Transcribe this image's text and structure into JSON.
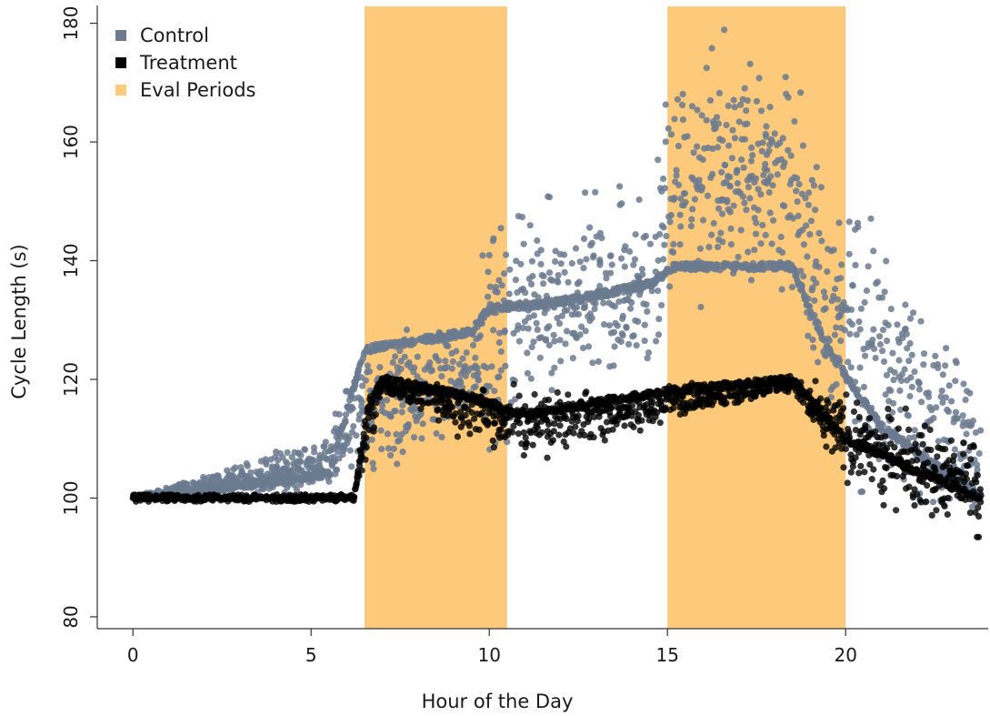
{
  "chart_data": {
    "type": "scatter",
    "title": "",
    "xlabel": "Hour of the Day",
    "ylabel": "Cycle Length (s)",
    "xlim": [
      -1,
      24
    ],
    "ylim": [
      78,
      183
    ],
    "x_ticks": [
      0,
      5,
      10,
      15,
      20
    ],
    "y_ticks": [
      80,
      100,
      120,
      140,
      160,
      180
    ],
    "grid": false,
    "legend_position": "top-left",
    "legend": [
      {
        "label": "Control",
        "color": "#6b7a8f",
        "marker": "square"
      },
      {
        "label": "Treatment",
        "color": "#000000",
        "marker": "square"
      },
      {
        "label": "Eval Periods",
        "color": "#fdc97a",
        "marker": "square"
      }
    ],
    "eval_periods": [
      [
        6.5,
        10.5
      ],
      [
        15.0,
        20.0
      ]
    ],
    "series": [
      {
        "name": "Control",
        "color": "#6b7a8f",
        "profile": [
          {
            "x": 0.0,
            "y_low": 100,
            "y_high": 100,
            "y_center": 100
          },
          {
            "x": 5.5,
            "y_low": 100,
            "y_high": 112,
            "y_center": 104
          },
          {
            "x": 6.5,
            "y_low": 100,
            "y_high": 130,
            "y_center": 125
          },
          {
            "x": 9.5,
            "y_low": 112,
            "y_high": 130,
            "y_center": 128
          },
          {
            "x": 10.0,
            "y_low": 100,
            "y_high": 157,
            "y_center": 132
          },
          {
            "x": 12.0,
            "y_low": 112,
            "y_high": 155,
            "y_center": 133
          },
          {
            "x": 14.5,
            "y_low": 115,
            "y_high": 157,
            "y_center": 136
          },
          {
            "x": 15.2,
            "y_low": 130,
            "y_high": 182,
            "y_center": 139
          },
          {
            "x": 18.5,
            "y_low": 130,
            "y_high": 178,
            "y_center": 139
          },
          {
            "x": 19.5,
            "y_low": 100,
            "y_high": 160,
            "y_center": 125
          },
          {
            "x": 21.0,
            "y_low": 91,
            "y_high": 155,
            "y_center": 112
          },
          {
            "x": 23.8,
            "y_low": 91,
            "y_high": 122,
            "y_center": 100
          }
        ]
      },
      {
        "name": "Treatment",
        "color": "#000000",
        "profile": [
          {
            "x": 0.0,
            "y_low": 100,
            "y_high": 100,
            "y_center": 100
          },
          {
            "x": 6.2,
            "y_low": 100,
            "y_high": 100,
            "y_center": 100
          },
          {
            "x": 6.6,
            "y_low": 105,
            "y_high": 120,
            "y_center": 115
          },
          {
            "x": 7.0,
            "y_low": 118,
            "y_high": 120,
            "y_center": 120
          },
          {
            "x": 9.5,
            "y_low": 108,
            "y_high": 120,
            "y_center": 117
          },
          {
            "x": 11.0,
            "y_low": 105,
            "y_high": 120,
            "y_center": 114
          },
          {
            "x": 15.0,
            "y_low": 112,
            "y_high": 120,
            "y_center": 118
          },
          {
            "x": 18.5,
            "y_low": 118,
            "y_high": 120,
            "y_center": 120
          },
          {
            "x": 20.0,
            "y_low": 100,
            "y_high": 120,
            "y_center": 110
          },
          {
            "x": 21.5,
            "y_low": 95,
            "y_high": 118,
            "y_center": 106
          },
          {
            "x": 23.8,
            "y_low": 91,
            "y_high": 112,
            "y_center": 100
          }
        ]
      }
    ]
  }
}
